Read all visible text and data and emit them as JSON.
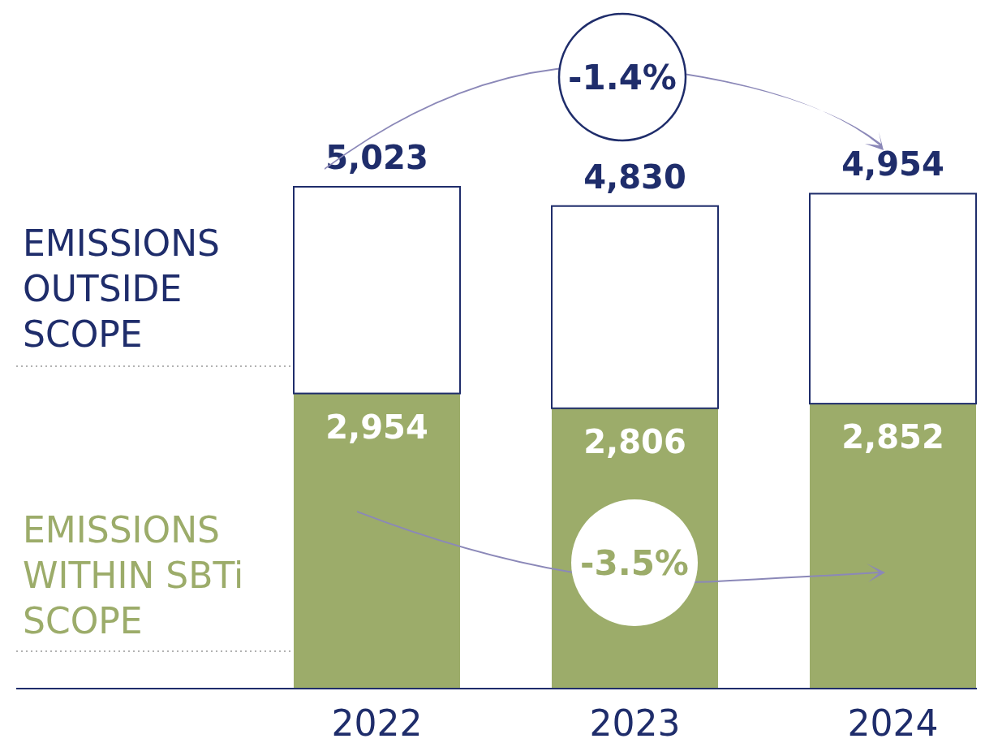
{
  "chart_data": {
    "type": "bar",
    "stacked": true,
    "categories": [
      "2022",
      "2023",
      "2024"
    ],
    "series": [
      {
        "name": "EMISSIONS WITHIN SBTi SCOPE",
        "color": "#9cac6a",
        "values": [
          2954,
          2806,
          2852
        ],
        "value_labels": [
          "2,954",
          "2,806",
          "2,852"
        ]
      },
      {
        "name": "EMISSIONS OUTSIDE SCOPE",
        "color": "#ffffff",
        "values": [
          2069,
          2024,
          2102
        ]
      }
    ],
    "totals": [
      "5,023",
      "4,830",
      "4,954"
    ],
    "annotations": [
      "-1.4%",
      "-3.5%"
    ],
    "legend": "left"
  }
}
